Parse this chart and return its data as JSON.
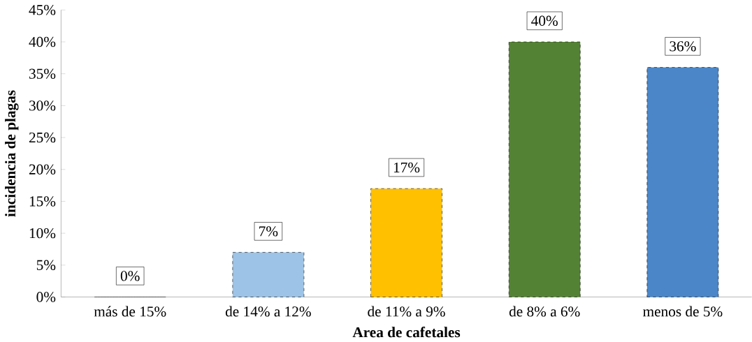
{
  "chart_data": {
    "type": "bar",
    "xlabel": "Area de cafetales",
    "ylabel": "incidencia de plagas",
    "categories": [
      "más de 15%",
      "de 14% a 12%",
      "de 11% a 9%",
      "de 8% a 6%",
      "menos de 5%"
    ],
    "values": [
      0,
      7,
      17,
      40,
      36
    ],
    "value_labels": [
      "0%",
      "7%",
      "17%",
      "40%",
      "36%"
    ],
    "colors": [
      "#9dc3e6",
      "#9dc3e6",
      "#ffc000",
      "#548235",
      "#4a86c8"
    ],
    "ylim": [
      0,
      45
    ],
    "yticks": [
      {
        "value": 0,
        "label": "0%"
      },
      {
        "value": 5,
        "label": "5%"
      },
      {
        "value": 10,
        "label": "10%"
      },
      {
        "value": 15,
        "label": "15%"
      },
      {
        "value": 20,
        "label": "20%"
      },
      {
        "value": 25,
        "label": "25%"
      },
      {
        "value": 30,
        "label": "30%"
      },
      {
        "value": 35,
        "label": "35%"
      },
      {
        "value": 40,
        "label": "40%"
      },
      {
        "value": 45,
        "label": "45%"
      }
    ],
    "grid": false
  }
}
